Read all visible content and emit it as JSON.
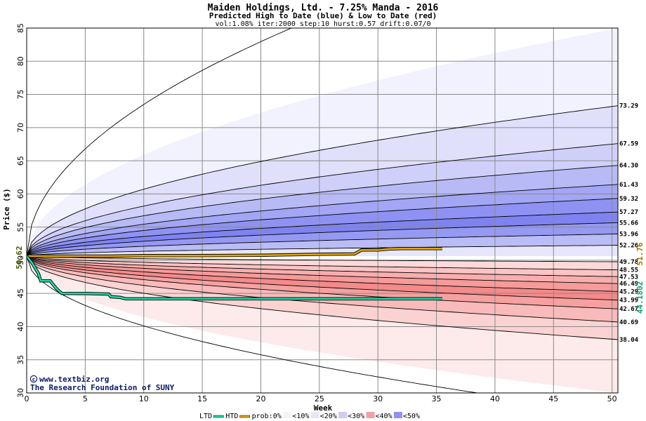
{
  "chart_data": {
    "type": "area",
    "title": "Maiden Holdings, Ltd. - 7.25% Manda - 2016",
    "subtitle": "Predicted High to Date (blue) &  Low to Date (red)",
    "params": "vol:1.08% iter:2000 step:10 hurst:0.57 drift:0.07/0",
    "xlabel": "Week",
    "ylabel": "Price ($)",
    "xlim": [
      0,
      50.5
    ],
    "ylim": [
      30,
      85
    ],
    "x_ticks": [
      0,
      5,
      10,
      15,
      20,
      25,
      30,
      35,
      40,
      45,
      50
    ],
    "y_ticks": [
      30,
      35,
      40,
      45,
      50,
      55,
      60,
      65,
      70,
      75,
      80,
      85
    ],
    "grid": true,
    "start_price": 50.62,
    "start_label": "50.62",
    "band_end_values": [
      {
        "label": "85+",
        "value": 85.0,
        "kind": "high"
      },
      {
        "label": "73.29",
        "value": 73.29,
        "kind": "high"
      },
      {
        "label": "67.59",
        "value": 67.59,
        "kind": "high"
      },
      {
        "label": "64.30",
        "value": 64.3,
        "kind": "high"
      },
      {
        "label": "61.43",
        "value": 61.43,
        "kind": "high"
      },
      {
        "label": "59.32",
        "value": 59.32,
        "kind": "high"
      },
      {
        "label": "57.27",
        "value": 57.27,
        "kind": "high"
      },
      {
        "label": "55.66",
        "value": 55.66,
        "kind": "high"
      },
      {
        "label": "53.96",
        "value": 53.96,
        "kind": "high"
      },
      {
        "label": "52.26",
        "value": 52.26,
        "kind": "high"
      },
      {
        "label": "49.78",
        "value": 49.78,
        "kind": "low"
      },
      {
        "label": "48.55",
        "value": 48.55,
        "kind": "low"
      },
      {
        "label": "47.53",
        "value": 47.53,
        "kind": "low"
      },
      {
        "label": "46.49",
        "value": 46.49,
        "kind": "low"
      },
      {
        "label": "45.29",
        "value": 45.29,
        "kind": "low"
      },
      {
        "label": "43.99",
        "value": 43.99,
        "kind": "low"
      },
      {
        "label": "42.67",
        "value": 42.67,
        "kind": "low"
      },
      {
        "label": "40.69",
        "value": 40.69,
        "kind": "low"
      },
      {
        "label": "38.04",
        "value": 38.04,
        "kind": "low"
      },
      {
        "label": "30-",
        "value": 30.0,
        "kind": "low"
      }
    ],
    "band_fills_high": [
      "#f2f2ff",
      "#e0e0fb",
      "#cfd0fa",
      "#b8baf6",
      "#a3a6f4",
      "#8f92f2",
      "#7f83f0",
      "#9599f2",
      "#babcf6",
      "#e6e6fc"
    ],
    "band_fills_low": [
      "#fdd9d9",
      "#fbc4c4",
      "#f9aeae",
      "#f69a9a",
      "#f48a8a",
      "#f6a0a0",
      "#f8baba",
      "#fbd2d2",
      "#fdeaea"
    ],
    "series": [
      {
        "name": "HTD",
        "color": "#e6a800",
        "x": [
          0,
          0.5,
          1,
          2,
          3,
          5,
          7,
          10,
          15,
          20,
          25,
          28,
          28.6,
          30,
          31,
          32,
          35.5
        ],
        "y": [
          50.62,
          50.62,
          50.62,
          50.62,
          50.62,
          50.62,
          50.62,
          50.7,
          50.7,
          50.75,
          50.9,
          50.95,
          51.55,
          51.55,
          51.7,
          51.76,
          51.76
        ]
      },
      {
        "name": "LTD",
        "color": "#22ddaa",
        "x": [
          0,
          0.5,
          1,
          1.2,
          2,
          2.5,
          3,
          5,
          7,
          7.2,
          8,
          8.5,
          12,
          20,
          30,
          35.5
        ],
        "y": [
          50.62,
          49.5,
          48.0,
          46.9,
          46.9,
          45.8,
          45.0,
          45.0,
          44.9,
          44.5,
          44.4,
          44.18,
          44.18,
          44.18,
          44.18,
          44.18
        ]
      }
    ],
    "end_labels": {
      "htd": "51.76",
      "ltd": "44.1802"
    },
    "legend": {
      "ltd": "LTD",
      "htd": "HTD",
      "prob": "prob:0%",
      "items": [
        "<10%",
        "<20%",
        "<30%",
        "<40%",
        "<50%"
      ],
      "fills": [
        "#f3f3fb",
        "#e6e6f8",
        "#d6c8ee",
        "#f0a0a8",
        "#8f92f2"
      ],
      "placement": "bottom"
    }
  },
  "credit": {
    "line1": "www.textbiz.org",
    "line2": "The Research Foundation of SUNY"
  }
}
